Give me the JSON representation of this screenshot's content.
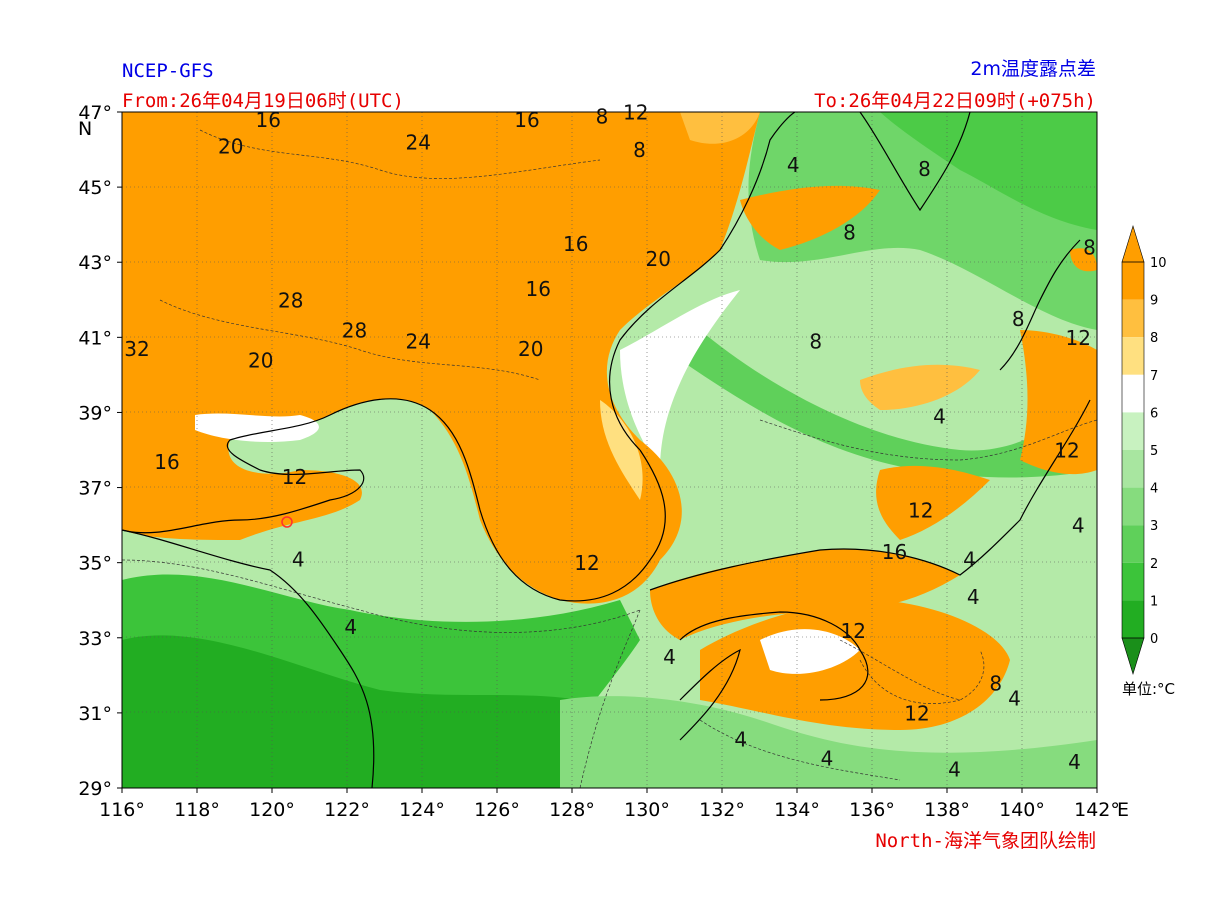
{
  "header": {
    "model": "NCEP-GFS",
    "title": "2m温度露点差",
    "from": "From:26年04月19日06时(UTC)",
    "to": "To:26年04月22日09时(+075h)",
    "credit": "North-海洋气象团队绘制"
  },
  "axes": {
    "lat_labels": [
      "47°",
      "45°",
      "43°",
      "41°",
      "39°",
      "37°",
      "35°",
      "33°",
      "31°",
      "29°"
    ],
    "lat_values": [
      47,
      45,
      43,
      41,
      39,
      37,
      35,
      33,
      31,
      29
    ],
    "lon_labels": [
      "116°",
      "118°",
      "120°",
      "122°",
      "124°",
      "126°",
      "128°",
      "130°",
      "132°",
      "134°",
      "136°",
      "138°",
      "140°",
      "142°"
    ],
    "lon_values": [
      116,
      118,
      120,
      122,
      124,
      126,
      128,
      130,
      132,
      134,
      136,
      138,
      140,
      142
    ],
    "n_unit": "N",
    "e_unit": "E",
    "lon_range": [
      116,
      142
    ],
    "lat_range": [
      29,
      47
    ]
  },
  "colorbar": {
    "ticks": [
      "10",
      "9",
      "8",
      "7",
      "6",
      "5",
      "4",
      "3",
      "2",
      "1",
      "0"
    ],
    "colors": [
      "#ff9e00",
      "#ffbf3f",
      "#ffe080",
      "#ffffff",
      "#c8f2c0",
      "#a8e6a0",
      "#86dc7e",
      "#5fd05a",
      "#3cc43a",
      "#22ad22",
      "#1a8f1a"
    ],
    "unit": "单位:°C"
  },
  "contour_labels": [
    {
      "text": "16",
      "lon": 119.9,
      "lat": 46.6
    },
    {
      "text": "20",
      "lon": 118.9,
      "lat": 45.9
    },
    {
      "text": "24",
      "lon": 123.9,
      "lat": 46.0
    },
    {
      "text": "16",
      "lon": 126.8,
      "lat": 46.6
    },
    {
      "text": "8",
      "lon": 128.8,
      "lat": 46.7
    },
    {
      "text": "12",
      "lon": 129.7,
      "lat": 46.8
    },
    {
      "text": "8",
      "lon": 129.8,
      "lat": 45.8
    },
    {
      "text": "16",
      "lon": 128.1,
      "lat": 43.3
    },
    {
      "text": "20",
      "lon": 130.3,
      "lat": 42.9
    },
    {
      "text": "16",
      "lon": 127.1,
      "lat": 42.1
    },
    {
      "text": "28",
      "lon": 120.5,
      "lat": 41.8
    },
    {
      "text": "28",
      "lon": 122.2,
      "lat": 41.0
    },
    {
      "text": "24",
      "lon": 123.9,
      "lat": 40.7
    },
    {
      "text": "20",
      "lon": 126.9,
      "lat": 40.5
    },
    {
      "text": "32",
      "lon": 116.4,
      "lat": 40.5
    },
    {
      "text": "20",
      "lon": 119.7,
      "lat": 40.2
    },
    {
      "text": "16",
      "lon": 117.2,
      "lat": 37.5
    },
    {
      "text": "12",
      "lon": 120.6,
      "lat": 37.1
    },
    {
      "text": "4",
      "lon": 133.9,
      "lat": 45.4
    },
    {
      "text": "8",
      "lon": 137.4,
      "lat": 45.3
    },
    {
      "text": "8",
      "lon": 135.4,
      "lat": 43.6
    },
    {
      "text": "8",
      "lon": 141.8,
      "lat": 43.2
    },
    {
      "text": "8",
      "lon": 134.5,
      "lat": 40.7
    },
    {
      "text": "8",
      "lon": 139.9,
      "lat": 41.3
    },
    {
      "text": "12",
      "lon": 141.5,
      "lat": 40.8
    },
    {
      "text": "4",
      "lon": 137.8,
      "lat": 38.7
    },
    {
      "text": "12",
      "lon": 141.2,
      "lat": 37.8
    },
    {
      "text": "12",
      "lon": 137.3,
      "lat": 36.2
    },
    {
      "text": "4",
      "lon": 141.5,
      "lat": 35.8
    },
    {
      "text": "16",
      "lon": 136.6,
      "lat": 35.1
    },
    {
      "text": "4",
      "lon": 120.7,
      "lat": 34.9
    },
    {
      "text": "12",
      "lon": 128.4,
      "lat": 34.8
    },
    {
      "text": "4",
      "lon": 138.7,
      "lat": 33.9
    },
    {
      "text": "4",
      "lon": 138.6,
      "lat": 34.9
    },
    {
      "text": "4",
      "lon": 122.1,
      "lat": 33.1
    },
    {
      "text": "12",
      "lon": 135.5,
      "lat": 33.0
    },
    {
      "text": "4",
      "lon": 130.6,
      "lat": 32.3
    },
    {
      "text": "8",
      "lon": 139.3,
      "lat": 31.6
    },
    {
      "text": "4",
      "lon": 139.8,
      "lat": 31.2
    },
    {
      "text": "12",
      "lon": 137.2,
      "lat": 30.8
    },
    {
      "text": "4",
      "lon": 132.5,
      "lat": 30.1
    },
    {
      "text": "4",
      "lon": 134.8,
      "lat": 29.6
    },
    {
      "text": "4",
      "lon": 138.2,
      "lat": 29.3
    },
    {
      "text": "4",
      "lon": 141.4,
      "lat": 29.5
    }
  ],
  "marker": {
    "name": "station-marker",
    "lon": 120.4,
    "lat": 36.1
  }
}
